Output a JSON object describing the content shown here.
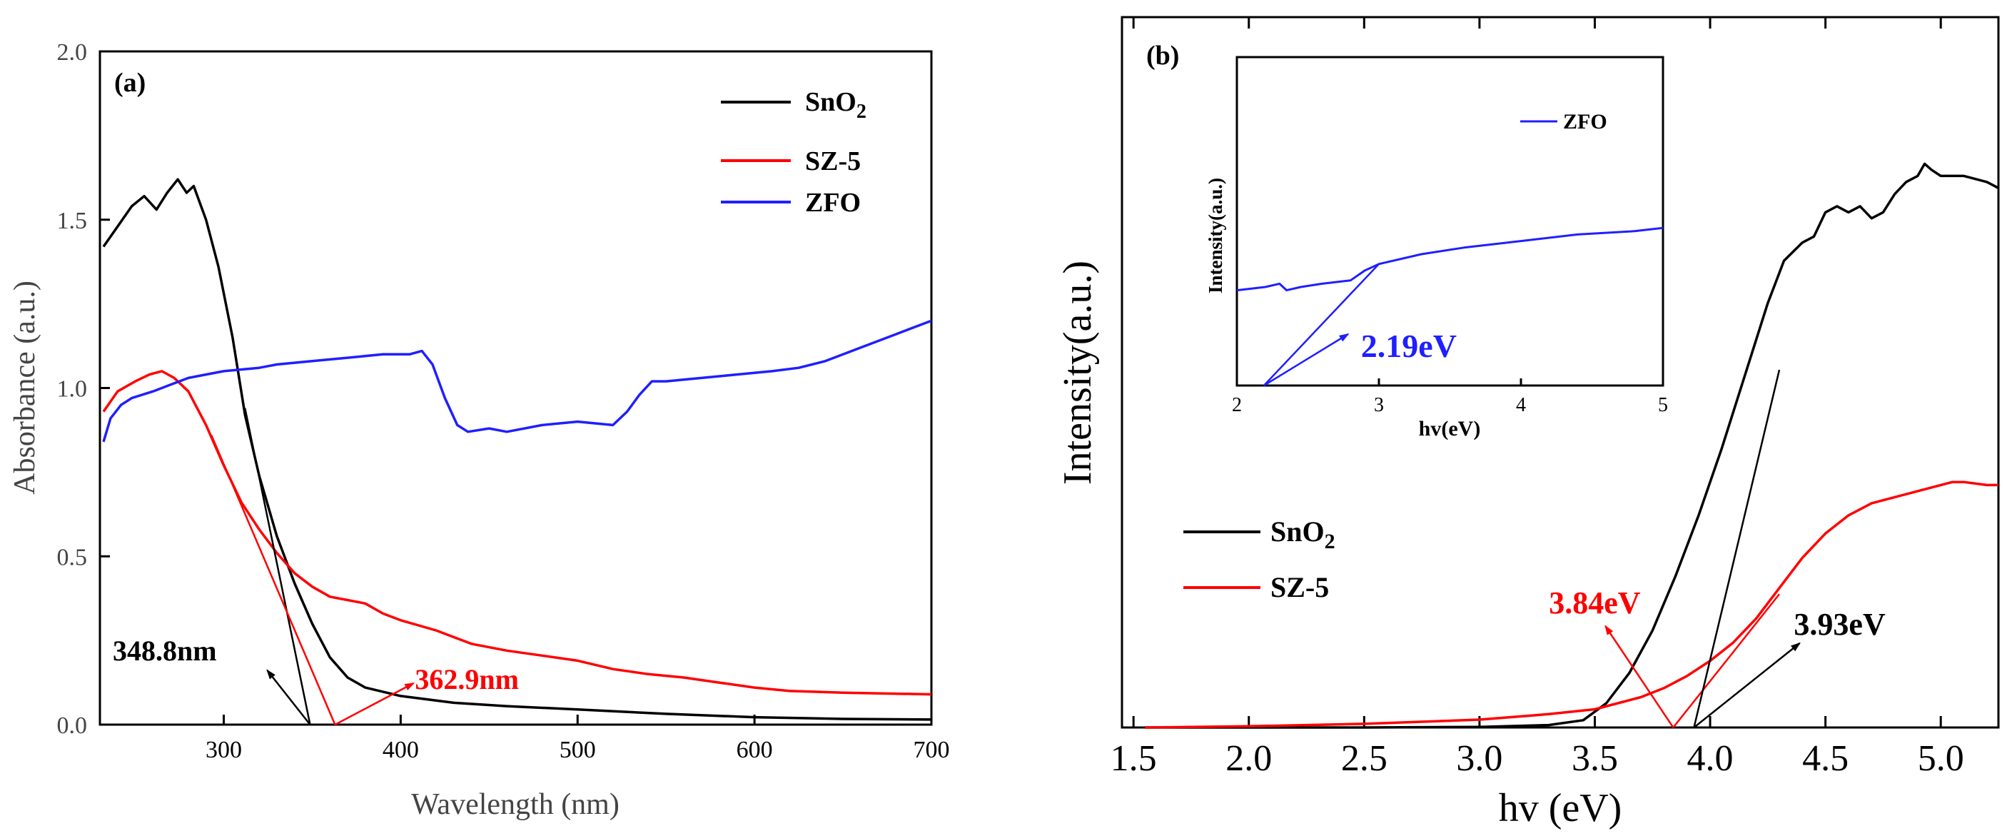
{
  "colors": {
    "SnO2": "#000000",
    "SZ-5": "#ff0000",
    "ZFO": "#1f1fff",
    "axis": "#000000"
  },
  "chart_data": [
    {
      "type": "line",
      "panel_label": "(a)",
      "xlabel": "Wavelength (nm)",
      "ylabel": "Absorbance (a.u.)",
      "xlim": [
        230,
        700
      ],
      "ylim": [
        0,
        2.0
      ],
      "xticks": [
        300,
        400,
        500,
        600,
        700
      ],
      "xtick_labels": [
        "300",
        "400",
        "500",
        "600",
        "700"
      ],
      "yticks": [
        0.0,
        0.5,
        1.0,
        1.5,
        2.0
      ],
      "ytick_labels": [
        "0.0",
        "0.5",
        "1.0",
        "1.5",
        "2.0"
      ],
      "legend": {
        "placement": "top-right",
        "entries": [
          "SnO",
          "SZ-5",
          "ZFO"
        ],
        "subscripts": [
          "2",
          "",
          ""
        ]
      },
      "series": [
        {
          "name": "SnO2",
          "color": "#000000",
          "points": [
            [
              232,
              1.42
            ],
            [
              240,
              1.48
            ],
            [
              248,
              1.54
            ],
            [
              255,
              1.57
            ],
            [
              262,
              1.53
            ],
            [
              268,
              1.58
            ],
            [
              274,
              1.62
            ],
            [
              279,
              1.58
            ],
            [
              283,
              1.6
            ],
            [
              290,
              1.5
            ],
            [
              297,
              1.36
            ],
            [
              305,
              1.15
            ],
            [
              312,
              0.92
            ],
            [
              320,
              0.74
            ],
            [
              330,
              0.56
            ],
            [
              340,
              0.42
            ],
            [
              350,
              0.3
            ],
            [
              360,
              0.2
            ],
            [
              370,
              0.14
            ],
            [
              380,
              0.11
            ],
            [
              400,
              0.085
            ],
            [
              430,
              0.065
            ],
            [
              460,
              0.055
            ],
            [
              500,
              0.045
            ],
            [
              550,
              0.032
            ],
            [
              600,
              0.022
            ],
            [
              650,
              0.017
            ],
            [
              700,
              0.015
            ]
          ]
        },
        {
          "name": "SZ-5",
          "color": "#ff0000",
          "points": [
            [
              232,
              0.93
            ],
            [
              240,
              0.99
            ],
            [
              250,
              1.02
            ],
            [
              258,
              1.04
            ],
            [
              265,
              1.05
            ],
            [
              272,
              1.03
            ],
            [
              280,
              0.99
            ],
            [
              290,
              0.89
            ],
            [
              300,
              0.77
            ],
            [
              310,
              0.66
            ],
            [
              320,
              0.58
            ],
            [
              330,
              0.51
            ],
            [
              340,
              0.45
            ],
            [
              350,
              0.41
            ],
            [
              360,
              0.38
            ],
            [
              370,
              0.37
            ],
            [
              380,
              0.36
            ],
            [
              390,
              0.33
            ],
            [
              400,
              0.31
            ],
            [
              420,
              0.28
            ],
            [
              440,
              0.24
            ],
            [
              460,
              0.22
            ],
            [
              480,
              0.205
            ],
            [
              500,
              0.19
            ],
            [
              520,
              0.165
            ],
            [
              540,
              0.15
            ],
            [
              560,
              0.14
            ],
            [
              580,
              0.125
            ],
            [
              600,
              0.11
            ],
            [
              620,
              0.1
            ],
            [
              650,
              0.095
            ],
            [
              700,
              0.09
            ]
          ]
        },
        {
          "name": "ZFO",
          "color": "#1f1fff",
          "points": [
            [
              232,
              0.84
            ],
            [
              236,
              0.91
            ],
            [
              242,
              0.95
            ],
            [
              248,
              0.97
            ],
            [
              260,
              0.99
            ],
            [
              270,
              1.01
            ],
            [
              280,
              1.03
            ],
            [
              290,
              1.04
            ],
            [
              300,
              1.05
            ],
            [
              320,
              1.06
            ],
            [
              330,
              1.07
            ],
            [
              350,
              1.08
            ],
            [
              370,
              1.09
            ],
            [
              390,
              1.1
            ],
            [
              405,
              1.1
            ],
            [
              412,
              1.11
            ],
            [
              418,
              1.07
            ],
            [
              425,
              0.97
            ],
            [
              432,
              0.89
            ],
            [
              438,
              0.87
            ],
            [
              450,
              0.88
            ],
            [
              460,
              0.87
            ],
            [
              480,
              0.89
            ],
            [
              500,
              0.9
            ],
            [
              520,
              0.89
            ],
            [
              528,
              0.93
            ],
            [
              535,
              0.98
            ],
            [
              542,
              1.02
            ],
            [
              550,
              1.02
            ],
            [
              570,
              1.03
            ],
            [
              590,
              1.04
            ],
            [
              610,
              1.05
            ],
            [
              625,
              1.06
            ],
            [
              640,
              1.08
            ],
            [
              660,
              1.12
            ],
            [
              680,
              1.16
            ],
            [
              700,
              1.2
            ]
          ]
        }
      ],
      "annotations": [
        {
          "text": "348.8nm",
          "color": "#000000",
          "x": 348.8,
          "tangent_from": [
            312,
            0.94
          ]
        },
        {
          "text": "362.9nm",
          "color": "#ff0000",
          "x": 362.9,
          "tangent_from": [
            293,
            0.86
          ]
        }
      ]
    },
    {
      "type": "line",
      "panel_label": "(b)",
      "xlabel": "hv (eV)",
      "ylabel": "Intensity(a.u.)",
      "xlim": [
        1.45,
        5.25
      ],
      "ylim": [
        0,
        1.0
      ],
      "xticks": [
        1.5,
        2.0,
        2.5,
        3.0,
        3.5,
        4.0,
        4.5,
        5.0
      ],
      "xtick_labels": [
        "1.5",
        "2.0",
        "2.5",
        "3.0",
        "3.5",
        "4.0",
        "4.5",
        "5.0"
      ],
      "legend": {
        "placement": "middle-left",
        "entries": [
          "SnO",
          "SZ-5"
        ],
        "subscripts": [
          "2",
          ""
        ]
      },
      "series": [
        {
          "name": "SnO2",
          "color": "#000000",
          "points": [
            [
              1.55,
              0.0
            ],
            [
              2.5,
              0.0
            ],
            [
              3.0,
              0.001
            ],
            [
              3.3,
              0.004
            ],
            [
              3.45,
              0.012
            ],
            [
              3.55,
              0.04
            ],
            [
              3.65,
              0.09
            ],
            [
              3.75,
              0.16
            ],
            [
              3.85,
              0.25
            ],
            [
              3.95,
              0.35
            ],
            [
              4.05,
              0.46
            ],
            [
              4.15,
              0.58
            ],
            [
              4.25,
              0.7
            ],
            [
              4.32,
              0.77
            ],
            [
              4.4,
              0.8
            ],
            [
              4.45,
              0.81
            ],
            [
              4.5,
              0.85
            ],
            [
              4.55,
              0.86
            ],
            [
              4.6,
              0.85
            ],
            [
              4.65,
              0.86
            ],
            [
              4.7,
              0.84
            ],
            [
              4.75,
              0.85
            ],
            [
              4.8,
              0.88
            ],
            [
              4.85,
              0.9
            ],
            [
              4.9,
              0.91
            ],
            [
              4.93,
              0.93
            ],
            [
              4.96,
              0.92
            ],
            [
              5.0,
              0.91
            ],
            [
              5.1,
              0.91
            ],
            [
              5.2,
              0.9
            ],
            [
              5.25,
              0.89
            ]
          ]
        },
        {
          "name": "SZ-5",
          "color": "#ff0000",
          "points": [
            [
              1.55,
              0.0
            ],
            [
              2.0,
              0.002
            ],
            [
              2.5,
              0.006
            ],
            [
              3.0,
              0.013
            ],
            [
              3.3,
              0.022
            ],
            [
              3.5,
              0.03
            ],
            [
              3.6,
              0.04
            ],
            [
              3.7,
              0.05
            ],
            [
              3.8,
              0.065
            ],
            [
              3.9,
              0.085
            ],
            [
              4.0,
              0.11
            ],
            [
              4.1,
              0.14
            ],
            [
              4.2,
              0.18
            ],
            [
              4.3,
              0.23
            ],
            [
              4.4,
              0.28
            ],
            [
              4.5,
              0.32
            ],
            [
              4.6,
              0.35
            ],
            [
              4.7,
              0.37
            ],
            [
              4.8,
              0.38
            ],
            [
              4.9,
              0.39
            ],
            [
              5.0,
              0.4
            ],
            [
              5.05,
              0.405
            ],
            [
              5.1,
              0.405
            ],
            [
              5.2,
              0.4
            ],
            [
              5.25,
              0.4
            ]
          ]
        }
      ],
      "annotations": [
        {
          "text": "3.84eV",
          "color": "#ff0000",
          "x": 3.84,
          "tangent_from": [
            4.3,
            0.22
          ]
        },
        {
          "text": "3.93eV",
          "color": "#000000",
          "x": 3.93,
          "tangent_from": [
            4.3,
            0.59
          ]
        }
      ],
      "inset": {
        "legend": {
          "entries": [
            "ZFO"
          ]
        },
        "xlabel": "hv(eV)",
        "ylabel": "Intensity(a.u.)",
        "xlim": [
          2,
          5
        ],
        "ylim": [
          0,
          1.0
        ],
        "xticks": [
          2,
          3,
          4,
          5
        ],
        "xtick_labels": [
          "2",
          "3",
          "4",
          "5"
        ],
        "series": [
          {
            "name": "ZFO",
            "color": "#1f1fff",
            "points": [
              [
                2.0,
                0.29
              ],
              [
                2.2,
                0.3
              ],
              [
                2.3,
                0.31
              ],
              [
                2.35,
                0.29
              ],
              [
                2.45,
                0.3
              ],
              [
                2.6,
                0.31
              ],
              [
                2.8,
                0.32
              ],
              [
                2.9,
                0.35
              ],
              [
                3.0,
                0.37
              ],
              [
                3.3,
                0.4
              ],
              [
                3.6,
                0.42
              ],
              [
                4.0,
                0.44
              ],
              [
                4.4,
                0.46
              ],
              [
                4.8,
                0.47
              ],
              [
                5.0,
                0.48
              ]
            ]
          }
        ],
        "annotations": [
          {
            "text": "2.19eV",
            "color": "#1f1fff",
            "x": 2.19,
            "tangent_from": [
              3.0,
              0.37
            ]
          }
        ]
      }
    }
  ]
}
